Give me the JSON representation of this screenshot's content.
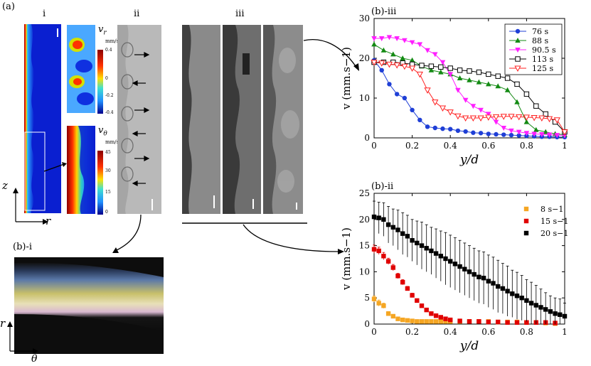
{
  "figure": {
    "label_a": "(a)",
    "sub_i": "i",
    "sub_ii": "ii",
    "sub_iii": "iii",
    "label_bi": "(b)-i",
    "axis_z": "z",
    "axis_r": "r",
    "axis_theta": "θ",
    "vr_title": "v",
    "vr_sub": "r",
    "vr_unit": "mm/s",
    "vr_ticks": [
      "0.4",
      "0",
      "-0.2",
      "-0.4"
    ],
    "vt_title": "v",
    "vt_sub": "θ",
    "vt_unit": "mm/s",
    "vt_ticks": [
      "45",
      "30",
      "15",
      "0"
    ]
  },
  "colors": {
    "blue": "#1f3fd6",
    "green": "#138a13",
    "magenta": "#ff1fff",
    "black": "#000000",
    "red": "#ff2020",
    "orange": "#f5a623",
    "red2": "#e00000"
  },
  "chart_data": [
    {
      "type": "line",
      "title": "(b)-iii",
      "xlabel": "y/d",
      "ylabel": "v  (mm.s−1)",
      "xlim": [
        0,
        1
      ],
      "ylim": [
        0,
        30
      ],
      "xticks": [
        "0",
        "0.2",
        "0.4",
        "0.6",
        "0.8",
        "1"
      ],
      "yticks": [
        "0",
        "10",
        "20",
        "30"
      ],
      "legend": "top-right",
      "series": [
        {
          "name": "76 s",
          "marker": "circle",
          "color": "#1f3fd6",
          "x": [
            0,
            0.04,
            0.08,
            0.12,
            0.16,
            0.2,
            0.24,
            0.28,
            0.32,
            0.36,
            0.4,
            0.44,
            0.48,
            0.52,
            0.56,
            0.6,
            0.64,
            0.68,
            0.72,
            0.76,
            0.8,
            0.84,
            0.88,
            0.92,
            0.96,
            1
          ],
          "y": [
            19.5,
            17,
            13.5,
            11,
            10,
            7,
            4.5,
            2.8,
            2.5,
            2.3,
            2.2,
            1.8,
            1.6,
            1.3,
            1.2,
            1.0,
            0.9,
            0.8,
            0.7,
            0.6,
            0.5,
            0.4,
            0.3,
            0.3,
            0.2,
            0.2
          ]
        },
        {
          "name": "88 s",
          "marker": "triangle-up",
          "color": "#138a13",
          "x": [
            0,
            0.05,
            0.1,
            0.15,
            0.2,
            0.25,
            0.3,
            0.35,
            0.4,
            0.45,
            0.5,
            0.55,
            0.6,
            0.65,
            0.7,
            0.75,
            0.8,
            0.85,
            0.9,
            0.95,
            1
          ],
          "y": [
            23.5,
            22,
            21,
            20,
            19.5,
            18,
            17,
            16.5,
            16,
            15,
            14.5,
            14,
            13.5,
            13,
            12,
            9,
            4,
            2,
            1.5,
            1,
            0.8
          ]
        },
        {
          "name": "90.5 s",
          "marker": "triangle-down",
          "color": "#ff1fff",
          "x": [
            0,
            0.04,
            0.08,
            0.12,
            0.16,
            0.2,
            0.24,
            0.28,
            0.32,
            0.36,
            0.4,
            0.44,
            0.48,
            0.52,
            0.56,
            0.6,
            0.64,
            0.68,
            0.72,
            0.76,
            0.8,
            0.84,
            0.88,
            0.92,
            0.96,
            1
          ],
          "y": [
            25,
            25,
            25.3,
            25,
            24.5,
            24,
            23.5,
            22,
            21,
            19,
            16,
            12,
            9.5,
            8,
            7,
            6,
            4,
            2.5,
            1.8,
            1.5,
            1.2,
            1,
            0.9,
            0.8,
            0.7,
            0.6
          ]
        },
        {
          "name": "113 s",
          "marker": "square-open",
          "color": "#000000",
          "x": [
            0,
            0.05,
            0.1,
            0.15,
            0.2,
            0.25,
            0.3,
            0.35,
            0.4,
            0.45,
            0.5,
            0.55,
            0.6,
            0.65,
            0.7,
            0.75,
            0.8,
            0.85,
            0.9,
            0.95,
            1
          ],
          "y": [
            19,
            19,
            19,
            18.8,
            18.5,
            18.2,
            18,
            17.8,
            17.5,
            17,
            16.8,
            16.5,
            16,
            15.5,
            15,
            13.5,
            11,
            8,
            6,
            4,
            1.5
          ]
        },
        {
          "name": "125 s",
          "marker": "triangle-down-open",
          "color": "#ff2020",
          "x": [
            0,
            0.04,
            0.08,
            0.12,
            0.16,
            0.2,
            0.24,
            0.28,
            0.32,
            0.36,
            0.4,
            0.44,
            0.48,
            0.52,
            0.56,
            0.6,
            0.64,
            0.68,
            0.72,
            0.76,
            0.8,
            0.84,
            0.88,
            0.92,
            0.96,
            1
          ],
          "y": [
            19,
            18.8,
            18.5,
            18.3,
            18,
            17.5,
            16,
            12,
            9,
            7.5,
            6.5,
            5.5,
            5,
            5,
            5,
            5.2,
            5.3,
            5.4,
            5.4,
            5.3,
            5.2,
            5.1,
            5,
            4.8,
            4.5,
            1.5
          ]
        }
      ]
    },
    {
      "type": "scatter",
      "title": "(b)-ii",
      "xlabel": "y/d",
      "ylabel": "v  (mm.s−1)",
      "xlim": [
        0,
        1
      ],
      "ylim": [
        0,
        25
      ],
      "xticks": [
        "0",
        "0.2",
        "0.4",
        "0.6",
        "0.8",
        "1"
      ],
      "yticks": [
        "0",
        "5",
        "10",
        "15",
        "20",
        "25"
      ],
      "legend": "top-right",
      "series": [
        {
          "name": "8 s−1",
          "marker": "square",
          "color": "#f5a623",
          "x": [
            0,
            0.025,
            0.05,
            0.075,
            0.1,
            0.125,
            0.15,
            0.175,
            0.2,
            0.225,
            0.25,
            0.275,
            0.3,
            0.325,
            0.35,
            0.375,
            0.4,
            0.45,
            0.5,
            0.55,
            0.6,
            0.65,
            0.7,
            0.75,
            0.8,
            0.85,
            0.9,
            0.95
          ],
          "y": [
            4.8,
            4,
            3.5,
            2,
            1.5,
            1,
            0.8,
            0.7,
            0.6,
            0.5,
            0.5,
            0.5,
            0.5,
            0.5,
            0.5,
            0.5,
            0.5,
            0.5,
            0.5,
            0.5,
            0.5,
            0.4,
            0.4,
            0.4,
            0.3,
            0.3,
            0.2,
            0.1
          ],
          "err": [
            0.6,
            0.6,
            0.5,
            0.4,
            0.3,
            0.2,
            0.2,
            0.2,
            0.1,
            0.1,
            0.1,
            0.1,
            0.1,
            0.1,
            0.1,
            0.1,
            0.1,
            0.1,
            0.1,
            0.1,
            0.1,
            0.1,
            0.1,
            0.1,
            0.1,
            0.1,
            0.1,
            0.1
          ]
        },
        {
          "name": "15 s−1",
          "marker": "square",
          "color": "#e00000",
          "x": [
            0,
            0.025,
            0.05,
            0.075,
            0.1,
            0.125,
            0.15,
            0.175,
            0.2,
            0.225,
            0.25,
            0.275,
            0.3,
            0.325,
            0.35,
            0.375,
            0.4,
            0.45,
            0.5,
            0.55,
            0.6,
            0.65,
            0.7,
            0.75,
            0.8,
            0.85,
            0.9,
            0.95
          ],
          "y": [
            14.3,
            14,
            13,
            12,
            10.8,
            9.2,
            8,
            6.8,
            5.5,
            4.5,
            3.5,
            2.7,
            2,
            1.6,
            1.3,
            1.0,
            0.8,
            0.6,
            0.5,
            0.5,
            0.4,
            0.4,
            0.3,
            0.3,
            0.3,
            0.3,
            0.3,
            0.2
          ],
          "err": [
            0.8,
            0.7,
            0.7,
            0.6,
            0.6,
            0.5,
            0.5,
            0.4,
            0.4,
            0.3,
            0.3,
            0.3,
            0.2,
            0.2,
            0.2,
            0.2,
            0.1,
            0.1,
            0.1,
            0.1,
            0.1,
            0.1,
            0.1,
            0.1,
            0.1,
            0.1,
            0.1,
            0.1
          ]
        },
        {
          "name": "20 s−1",
          "marker": "square",
          "color": "#000000",
          "x": [
            0,
            0.025,
            0.05,
            0.075,
            0.1,
            0.125,
            0.15,
            0.175,
            0.2,
            0.225,
            0.25,
            0.275,
            0.3,
            0.325,
            0.35,
            0.375,
            0.4,
            0.425,
            0.45,
            0.475,
            0.5,
            0.525,
            0.55,
            0.575,
            0.6,
            0.625,
            0.65,
            0.675,
            0.7,
            0.725,
            0.75,
            0.775,
            0.8,
            0.825,
            0.85,
            0.875,
            0.9,
            0.925,
            0.95,
            0.975,
            1
          ],
          "y": [
            20.5,
            20.3,
            20,
            19,
            18.5,
            18,
            17.3,
            16.8,
            16,
            15.5,
            15,
            14.5,
            14,
            13.5,
            13,
            12.5,
            12,
            11.5,
            11,
            10.5,
            10,
            9.5,
            9,
            8.8,
            8.2,
            7.8,
            7.2,
            6.8,
            6.3,
            5.8,
            5.4,
            5,
            4.5,
            4,
            3.6,
            3.2,
            2.8,
            2.4,
            2,
            1.8,
            1.5
          ],
          "err": [
            3,
            3,
            3.2,
            3.5,
            3.5,
            3.8,
            4,
            4,
            4,
            4.2,
            4.5,
            4.5,
            4.5,
            4.7,
            4.8,
            5,
            5,
            5,
            5,
            5,
            5,
            5,
            5,
            5,
            5,
            5,
            5,
            4.8,
            4.8,
            4.5,
            4.5,
            4.3,
            4,
            4,
            3.8,
            3.5,
            3.2,
            3,
            3,
            3,
            2.5
          ]
        }
      ]
    }
  ]
}
